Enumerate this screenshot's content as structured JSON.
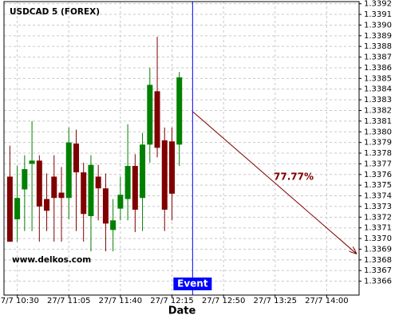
{
  "chart_data": {
    "type": "candlestick",
    "title": "USDCAD 5 (FOREX)",
    "watermark": "www.delkos.com",
    "xlabel": "Date",
    "up_color": "#008000",
    "down_color": "#800000",
    "grid": true,
    "xlim": [
      "27/7 10:21",
      "27/7 14:22"
    ],
    "xticks": [
      "27/7 10:30",
      "27/7 11:05",
      "27/7 11:40",
      "27/7 12:15",
      "27/7 12:50",
      "27/7 13:25",
      "27/7 14:00"
    ],
    "ylim": [
      1.33647,
      1.33922
    ],
    "yticks": [
      1.3366,
      1.3367,
      1.3368,
      1.3369,
      {
        "value": 1.337,
        "label": "1.3370"
      },
      1.3371,
      1.3372,
      1.3373,
      1.3374,
      1.3375,
      1.3376,
      1.3377,
      1.3378,
      1.3379,
      {
        "value": 1.338,
        "label": "1.3380"
      },
      1.3381,
      1.3382,
      1.3383,
      1.3384,
      1.3385,
      1.3386,
      1.3387,
      1.3388,
      1.3389,
      {
        "value": 1.339,
        "label": "1.3390"
      },
      1.3391,
      1.3392
    ],
    "x": [
      "27/7 10:25",
      "27/7 10:30",
      "27/7 10:35",
      "27/7 10:40",
      "27/7 10:45",
      "27/7 10:50",
      "27/7 10:55",
      "27/7 11:00",
      "27/7 11:05",
      "27/7 11:10",
      "27/7 11:15",
      "27/7 11:20",
      "27/7 11:25",
      "27/7 11:30",
      "27/7 11:35",
      "27/7 11:40",
      "27/7 11:45",
      "27/7 11:50",
      "27/7 11:55",
      "27/7 12:00",
      "27/7 12:05",
      "27/7 12:10",
      "27/7 12:15",
      "27/7 12:20"
    ],
    "open": [
      1.33758,
      1.33718,
      1.33746,
      1.3377,
      1.33773,
      1.33737,
      1.33758,
      1.33743,
      1.33738,
      1.33789,
      1.33762,
      1.33721,
      1.33758,
      1.33747,
      1.33708,
      1.33728,
      1.33737,
      1.33768,
      1.33738,
      1.33788,
      1.33838,
      1.33792,
      1.33791,
      1.33788
    ],
    "high": [
      1.33787,
      1.33768,
      1.33778,
      1.3381,
      1.33778,
      1.33761,
      1.33778,
      1.33767,
      1.33804,
      1.33802,
      1.33771,
      1.33778,
      1.33769,
      1.33761,
      1.33737,
      1.33758,
      1.33807,
      1.33779,
      1.33799,
      1.3386,
      1.33889,
      1.33804,
      1.33804,
      1.33856
    ],
    "low": [
      1.33697,
      1.33697,
      1.33707,
      1.33707,
      1.33697,
      1.33707,
      1.33697,
      1.33697,
      1.33718,
      1.33707,
      1.33697,
      1.33688,
      1.33717,
      1.33688,
      1.33688,
      1.33717,
      1.33717,
      1.33706,
      1.33707,
      1.33771,
      1.33776,
      1.33707,
      1.33717,
      1.33768
    ],
    "close": [
      1.33697,
      1.33738,
      1.33765,
      1.33773,
      1.3373,
      1.33726,
      1.33738,
      1.33738,
      1.3379,
      1.33762,
      1.33723,
      1.33769,
      1.33747,
      1.33714,
      1.33717,
      1.33741,
      1.33768,
      1.33727,
      1.33788,
      1.33844,
      1.33785,
      1.33727,
      1.33742,
      1.33851
    ],
    "event": {
      "label": "Event",
      "x": "27/7 12:29",
      "color": "#0000ff"
    },
    "forecast": {
      "label": "77.77%",
      "color": "#800000",
      "x": [
        "27/7 12:29",
        "27/7 14:20"
      ],
      "y": [
        1.33819,
        1.33686
      ]
    }
  }
}
